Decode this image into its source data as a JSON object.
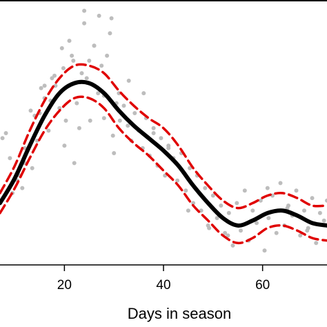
{
  "chart_data": {
    "type": "scatter",
    "title": "",
    "xlabel": "Days in season",
    "ylabel": "",
    "xlim": [
      7,
      73
    ],
    "ylim": [
      0,
      1
    ],
    "x_ticks": [
      20,
      40,
      60
    ],
    "grid": false,
    "legend": "none",
    "colors": {
      "points": "#bdbdbd",
      "fit": "#000000",
      "ci": "#e00000"
    },
    "series": [
      {
        "type": "line",
        "x": [
          7,
          10,
          13,
          16,
          19,
          22,
          25,
          28,
          31,
          34,
          37,
          40,
          43,
          46,
          49,
          52,
          55,
          58,
          61,
          64,
          67,
          70,
          73
        ],
        "y": [
          0.22,
          0.32,
          0.45,
          0.57,
          0.66,
          0.7,
          0.7,
          0.66,
          0.59,
          0.53,
          0.48,
          0.43,
          0.37,
          0.29,
          0.22,
          0.16,
          0.13,
          0.15,
          0.18,
          0.19,
          0.17,
          0.14,
          0.13
        ]
      },
      {
        "type": "line",
        "style": "dashed",
        "x": [
          7,
          10,
          13,
          16,
          19,
          22,
          25,
          28,
          31,
          34,
          37,
          40,
          43,
          46,
          49,
          52,
          55,
          58,
          61,
          64,
          67,
          70,
          73
        ],
        "y": [
          0.26,
          0.37,
          0.51,
          0.63,
          0.72,
          0.77,
          0.77,
          0.74,
          0.67,
          0.61,
          0.56,
          0.52,
          0.45,
          0.36,
          0.29,
          0.23,
          0.2,
          0.22,
          0.25,
          0.26,
          0.24,
          0.21,
          0.21
        ]
      },
      {
        "type": "line",
        "style": "dashed",
        "x": [
          7,
          10,
          13,
          16,
          19,
          22,
          25,
          28,
          31,
          34,
          37,
          40,
          43,
          46,
          49,
          52,
          55,
          58,
          61,
          64,
          67,
          70,
          73
        ],
        "y": [
          0.18,
          0.28,
          0.4,
          0.51,
          0.59,
          0.64,
          0.64,
          0.6,
          0.52,
          0.46,
          0.41,
          0.35,
          0.29,
          0.21,
          0.15,
          0.09,
          0.06,
          0.08,
          0.12,
          0.13,
          0.11,
          0.08,
          0.07
        ]
      },
      {
        "type": "scatter",
        "x": [
          7.5,
          9.0,
          10.5,
          11.5,
          12.0,
          13.5,
          14.5,
          15.0,
          16.0,
          16.8,
          17.5,
          18.2,
          19.0,
          19.5,
          20.3,
          21.0,
          21.8,
          22.5,
          23.0,
          24.0,
          24.5,
          25.2,
          26.0,
          26.8,
          27.5,
          28.0,
          28.6,
          29.2,
          29.8,
          30.5,
          31.2,
          32.0,
          32.8,
          33.5,
          34.2,
          35.0,
          35.8,
          36.5,
          37.2,
          38.0,
          38.8,
          39.5,
          40.3,
          41.0,
          42.0,
          42.8,
          43.6,
          44.5,
          45.3,
          46.0,
          46.8,
          47.6,
          48.4,
          49.2,
          50.0,
          50.8,
          51.6,
          52.4,
          53.2,
          54.0,
          54.8,
          55.6,
          56.4,
          57.2,
          58.0,
          58.8,
          59.6,
          60.4,
          61.2,
          62.0,
          62.8,
          63.6,
          64.4,
          65.2,
          66.0,
          66.8,
          67.6,
          68.4,
          69.2,
          70.0,
          70.8,
          71.6,
          72.4,
          20.0,
          22.0,
          24.0,
          26.0,
          28.0,
          30.0,
          25.0,
          27.0,
          18.0,
          16.0,
          14.0,
          12.0,
          36.0,
          41.0,
          45.0,
          49.0,
          53.0,
          57.0,
          61.0,
          65.0,
          69.0,
          73.0,
          38.0,
          33.0,
          31.0,
          29.5,
          23.5,
          21.5,
          19.8,
          17.2,
          15.3,
          13.2,
          11.0,
          9.5,
          8.2
        ],
        "y": [
          0.48,
          0.4,
          0.31,
          0.28,
          0.44,
          0.36,
          0.47,
          0.58,
          0.64,
          0.51,
          0.72,
          0.69,
          0.6,
          0.84,
          0.55,
          0.87,
          0.79,
          0.62,
          0.52,
          0.94,
          0.72,
          0.55,
          0.85,
          0.66,
          0.77,
          0.56,
          0.81,
          0.9,
          0.49,
          0.62,
          0.55,
          0.61,
          0.53,
          0.47,
          0.58,
          0.51,
          0.44,
          0.56,
          0.41,
          0.5,
          0.37,
          0.48,
          0.33,
          0.44,
          0.4,
          0.31,
          0.42,
          0.27,
          0.36,
          0.22,
          0.33,
          0.19,
          0.28,
          0.12,
          0.25,
          0.16,
          0.21,
          0.1,
          0.18,
          0.05,
          0.22,
          0.11,
          0.27,
          0.07,
          0.19,
          0.14,
          0.23,
          0.03,
          0.16,
          0.25,
          0.1,
          0.3,
          0.13,
          0.21,
          0.17,
          0.27,
          0.09,
          0.19,
          0.12,
          0.24,
          0.06,
          0.18,
          0.15,
          0.45,
          0.38,
          0.99,
          0.85,
          0.65,
          0.42,
          0.79,
          0.97,
          0.73,
          0.69,
          0.57,
          0.38,
          0.66,
          0.45,
          0.19,
          0.13,
          0.09,
          0.14,
          0.28,
          0.2,
          0.11,
          0.23,
          0.52,
          0.71,
          0.66,
          0.96,
          0.74,
          0.81,
          0.76,
          0.63,
          0.68,
          0.59,
          0.33,
          0.26,
          0.5
        ]
      }
    ]
  }
}
